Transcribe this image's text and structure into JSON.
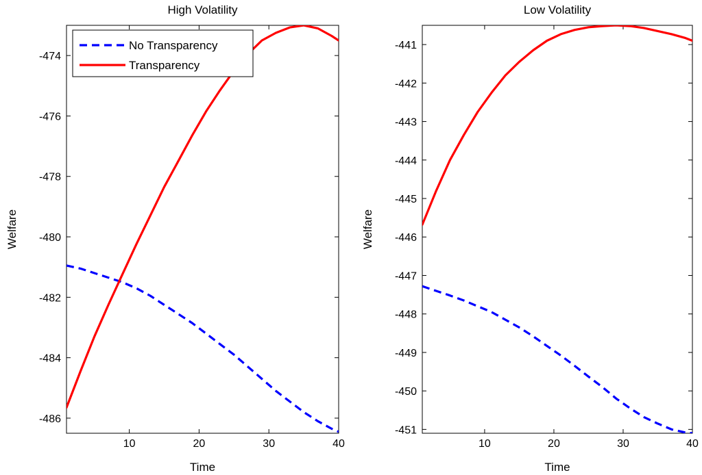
{
  "chart_data": [
    {
      "type": "line",
      "title": "High Volatility",
      "xlabel": "Time",
      "ylabel": "Welfare",
      "xlim": [
        1,
        40
      ],
      "ylim": [
        -486.5,
        -473
      ],
      "xticks": [
        10,
        20,
        30,
        40
      ],
      "yticks": [
        -486,
        -484,
        -482,
        -480,
        -478,
        -476,
        -474
      ],
      "legend": {
        "position": "top-left"
      },
      "x": [
        1,
        3,
        5,
        7,
        9,
        11,
        13,
        15,
        17,
        19,
        21,
        23,
        25,
        27,
        29,
        31,
        33,
        35,
        37,
        39,
        40
      ],
      "series": [
        {
          "name": "No Transparency",
          "color": "#0000ff",
          "style": "dashed",
          "values": [
            -480.95,
            -481.05,
            -481.2,
            -481.35,
            -481.5,
            -481.7,
            -481.95,
            -482.25,
            -482.55,
            -482.85,
            -483.2,
            -483.55,
            -483.9,
            -484.3,
            -484.7,
            -485.1,
            -485.45,
            -485.8,
            -486.1,
            -486.35,
            -486.45
          ]
        },
        {
          "name": "Transparency",
          "color": "#ff0000",
          "style": "solid",
          "values": [
            -485.65,
            -484.45,
            -483.3,
            -482.25,
            -481.25,
            -480.25,
            -479.3,
            -478.35,
            -477.5,
            -476.65,
            -475.85,
            -475.15,
            -474.5,
            -473.95,
            -473.5,
            -473.25,
            -473.07,
            -473.0,
            -473.1,
            -473.35,
            -473.5
          ]
        }
      ]
    },
    {
      "type": "line",
      "title": "Low Volatility",
      "xlabel": "Time",
      "ylabel": "Welfare",
      "xlim": [
        1,
        40
      ],
      "ylim": [
        -451.1,
        -440.5
      ],
      "xticks": [
        10,
        20,
        30,
        40
      ],
      "yticks": [
        -451,
        -450,
        -449,
        -448,
        -447,
        -446,
        -445,
        -444,
        -443,
        -442,
        -441
      ],
      "x": [
        1,
        3,
        5,
        7,
        9,
        11,
        13,
        15,
        17,
        19,
        21,
        23,
        25,
        27,
        29,
        31,
        33,
        35,
        37,
        39,
        40
      ],
      "series": [
        {
          "name": "No Transparency",
          "color": "#0000ff",
          "style": "dashed",
          "values": [
            -447.28,
            -447.4,
            -447.52,
            -447.65,
            -447.8,
            -447.95,
            -448.15,
            -448.35,
            -448.58,
            -448.83,
            -449.08,
            -449.35,
            -449.63,
            -449.9,
            -450.2,
            -450.45,
            -450.68,
            -450.85,
            -451.0,
            -451.08,
            -451.1
          ]
        },
        {
          "name": "Transparency",
          "color": "#ff0000",
          "style": "solid",
          "values": [
            -445.68,
            -444.8,
            -444.0,
            -443.35,
            -442.75,
            -442.25,
            -441.8,
            -441.45,
            -441.15,
            -440.9,
            -440.73,
            -440.62,
            -440.55,
            -440.52,
            -440.5,
            -440.52,
            -440.57,
            -440.65,
            -440.73,
            -440.83,
            -440.9
          ]
        }
      ]
    }
  ]
}
